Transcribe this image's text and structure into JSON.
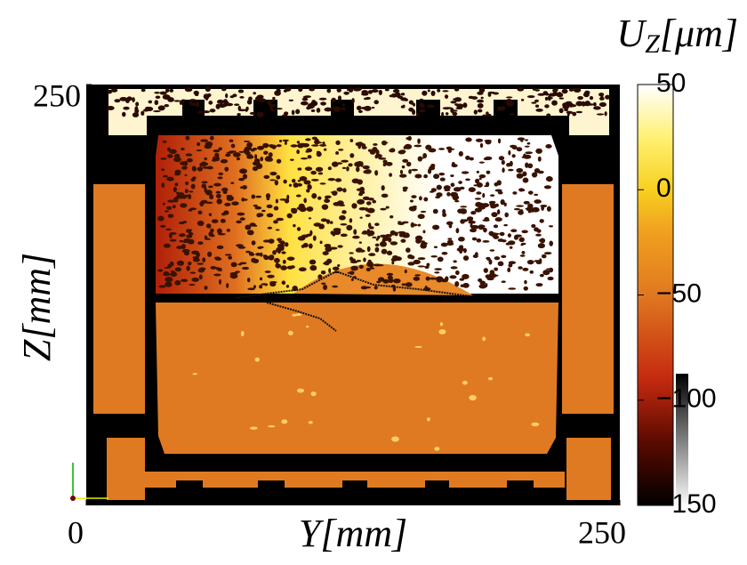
{
  "chart_data": {
    "type": "heatmap",
    "colorbar_label": {
      "base": "U",
      "sub": "Z",
      "unit": "[μm]"
    },
    "x_label": "Y[mm]",
    "y_label": "Z[mm]",
    "xlim": [
      0,
      250
    ],
    "xticks": [
      0,
      250
    ],
    "ylim": [
      0,
      250
    ],
    "yticks": [
      250
    ],
    "clim": [
      -150,
      50
    ],
    "cticks": [
      50,
      0,
      {
        "value": -50,
        "label": "−50"
      },
      {
        "value": -100,
        "label": "−100"
      },
      {
        "value": -150,
        "label": "−150"
      }
    ]
  }
}
